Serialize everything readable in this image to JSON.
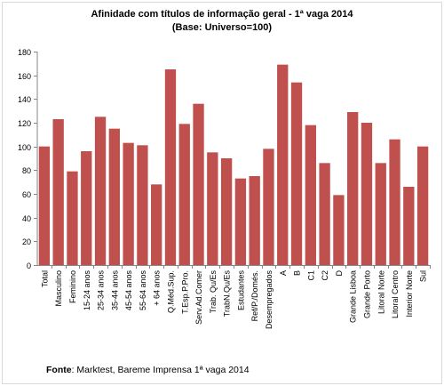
{
  "chart_data": {
    "type": "bar",
    "title": "Afinidade com títulos de informação geral - 1ª vaga 2014",
    "subtitle": "(Base: Universo=100)",
    "categories": [
      "Total",
      "Masculino",
      "Feminino",
      "15-24 anos",
      "25-34 anos",
      "35-44 anos",
      "45-54 anos",
      "55-64 anos",
      "+ 64 anos",
      "Q.Méd.Sup.",
      "T.Esp.P.Pro.",
      "Serv.Ad.Comer",
      "Trab. Qu/Es",
      "TrabN.Qu/Es",
      "Estudantes",
      "Ref/P./Domés.",
      "Desempregados",
      "A",
      "B",
      "C1",
      "C2",
      "D",
      "Grande Lisboa",
      "Grande Porto",
      "Litoral Norte",
      "Litoral Centro",
      "Interior Norte",
      "Sul"
    ],
    "values": [
      100,
      123,
      79,
      96,
      125,
      115,
      103,
      101,
      68,
      165,
      119,
      136,
      95,
      90,
      73,
      75,
      98,
      169,
      154,
      118,
      86,
      59,
      129,
      120,
      86,
      106,
      66,
      100
    ],
    "ylim": [
      0,
      180
    ],
    "yticks": [
      0,
      20,
      40,
      60,
      80,
      100,
      120,
      140,
      160,
      180
    ],
    "grid": false,
    "legend": "none",
    "bar_color": "#c0504d",
    "axis_color": "#868686"
  },
  "source": {
    "label": "Fonte",
    "text": ": Marktest, Bareme Imprensa 1ª vaga 2014"
  }
}
